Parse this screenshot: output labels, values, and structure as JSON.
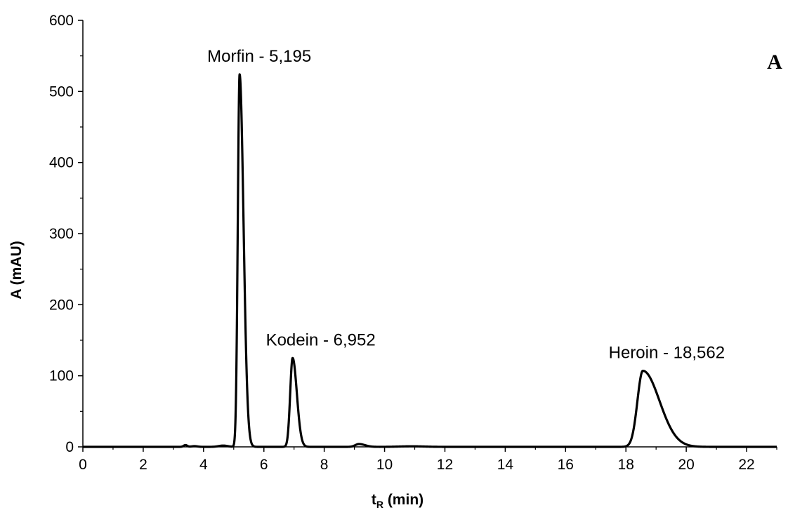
{
  "chart_data": {
    "type": "line",
    "panel_label": "A",
    "xlabel_main": "t",
    "xlabel_sub": "R",
    "xlabel_unit": " (min)",
    "ylabel": "A (mAU)",
    "xlim": [
      0,
      23
    ],
    "ylim": [
      0,
      600
    ],
    "x_ticks": [
      0,
      2,
      4,
      6,
      8,
      10,
      12,
      14,
      16,
      18,
      20,
      22
    ],
    "y_ticks": [
      0,
      100,
      200,
      300,
      400,
      500,
      600
    ],
    "line_color": "#000000",
    "baseline_noise": [
      {
        "x": 3.4,
        "y": 2.5,
        "w": 0.06
      },
      {
        "x": 3.7,
        "y": 1.0,
        "w": 0.1
      },
      {
        "x": 4.65,
        "y": 1.8,
        "w": 0.15
      },
      {
        "x": 10.9,
        "y": 0.8,
        "w": 0.4
      }
    ],
    "peaks": [
      {
        "name": "Morfin",
        "tR": 5.195,
        "label": "Morfin - 5,195",
        "height": 524,
        "width_left": 0.06,
        "width_right": 0.13
      },
      {
        "name": "Kodein",
        "tR": 6.952,
        "label": "Kodein - 6,952",
        "height": 125,
        "width_left": 0.08,
        "width_right": 0.14
      },
      {
        "name": "",
        "tR": 9.15,
        "label": "",
        "height": 4,
        "width_left": 0.12,
        "width_right": 0.2
      },
      {
        "name": "Heroin",
        "tR": 18.562,
        "label": "Heroin - 18,562",
        "height": 107,
        "width_left": 0.18,
        "width_right": 0.55
      }
    ]
  }
}
